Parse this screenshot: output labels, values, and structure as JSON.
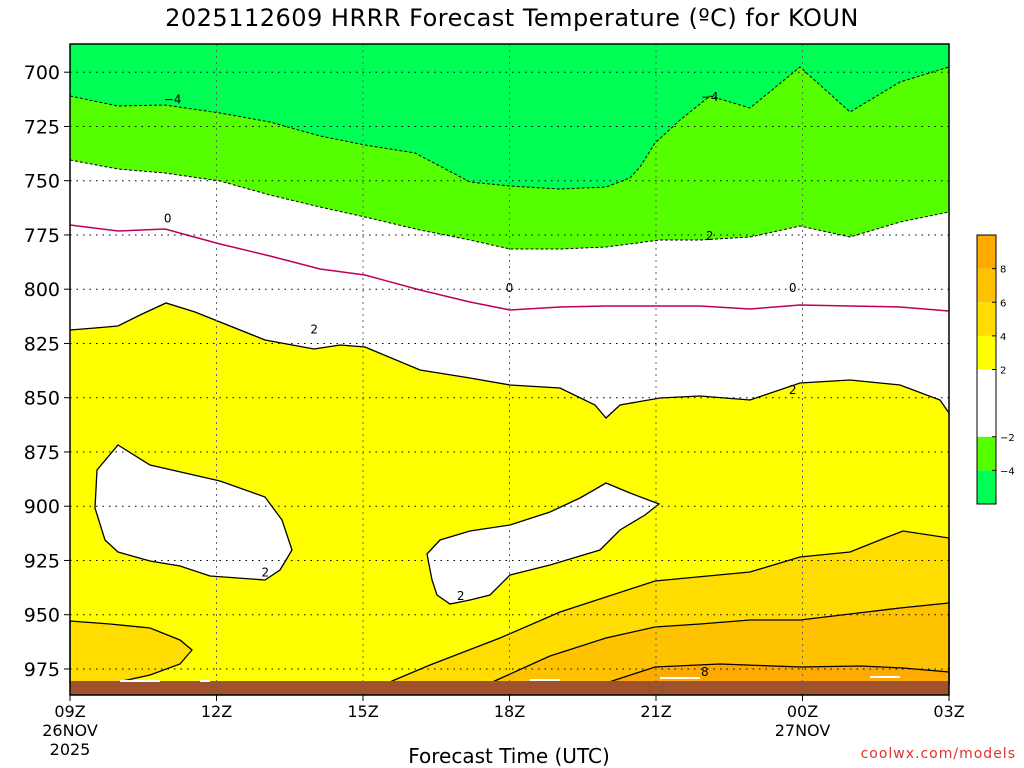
{
  "chart_data": {
    "type": "contour",
    "title": "2025112609 HRRR Forecast Temperature (ºC) for KOUN",
    "xlabel": "Forecast Time (UTC)",
    "ylabel": "",
    "x_ticks": [
      "09Z",
      "12Z",
      "15Z",
      "18Z",
      "21Z",
      "00Z",
      "03Z"
    ],
    "x_hours": [
      0,
      3,
      6,
      9,
      12,
      15,
      18
    ],
    "x_date_labels": [
      {
        "hour": 0,
        "day": "26NOV",
        "year": "2025"
      },
      {
        "hour": 15,
        "day": "27NOV",
        "year": ""
      }
    ],
    "xlim": [
      0,
      18
    ],
    "y_ticks": [
      700,
      725,
      750,
      775,
      800,
      825,
      850,
      875,
      900,
      925,
      950,
      975
    ],
    "ylim": [
      987,
      687
    ],
    "ground_top_hpa": 983,
    "contour_levels": [
      -4,
      -2,
      0,
      2,
      4,
      6,
      8
    ],
    "contour_labels": [
      {
        "text": "-4",
        "hour": 2.1,
        "hpa": 712
      },
      {
        "text": "-4",
        "hour": 13.1,
        "hpa": 711
      },
      {
        "text": "0",
        "hour": 2.0,
        "hpa": 767
      },
      {
        "text": "2",
        "hour": 13.1,
        "hpa": 775
      },
      {
        "text": "0",
        "hour": 9.0,
        "hpa": 799
      },
      {
        "text": "0",
        "hour": 14.8,
        "hpa": 799
      },
      {
        "text": "2",
        "hour": 5.0,
        "hpa": 818
      },
      {
        "text": "2",
        "hour": 14.8,
        "hpa": 846
      },
      {
        "text": "2",
        "hour": 4.0,
        "hpa": 930
      },
      {
        "text": "2",
        "hour": 8.0,
        "hpa": 941
      },
      {
        "text": "8",
        "hour": 13.0,
        "hpa": 976
      }
    ],
    "colorbar": {
      "boundaries": [
        -6,
        -4,
        -2,
        2,
        4,
        6,
        8,
        10
      ],
      "colors": [
        "#00ff55",
        "#55ff00",
        "#ffffff",
        "#ffff00",
        "#ffdd00",
        "#ffc200",
        "#ffaa00"
      ],
      "tick_labels": [
        "8",
        "6",
        "4",
        "2",
        "−2",
        "−4"
      ],
      "tick_values": [
        8,
        6,
        4,
        2,
        -2,
        -4
      ]
    },
    "credit": "coolwx.com/models"
  }
}
